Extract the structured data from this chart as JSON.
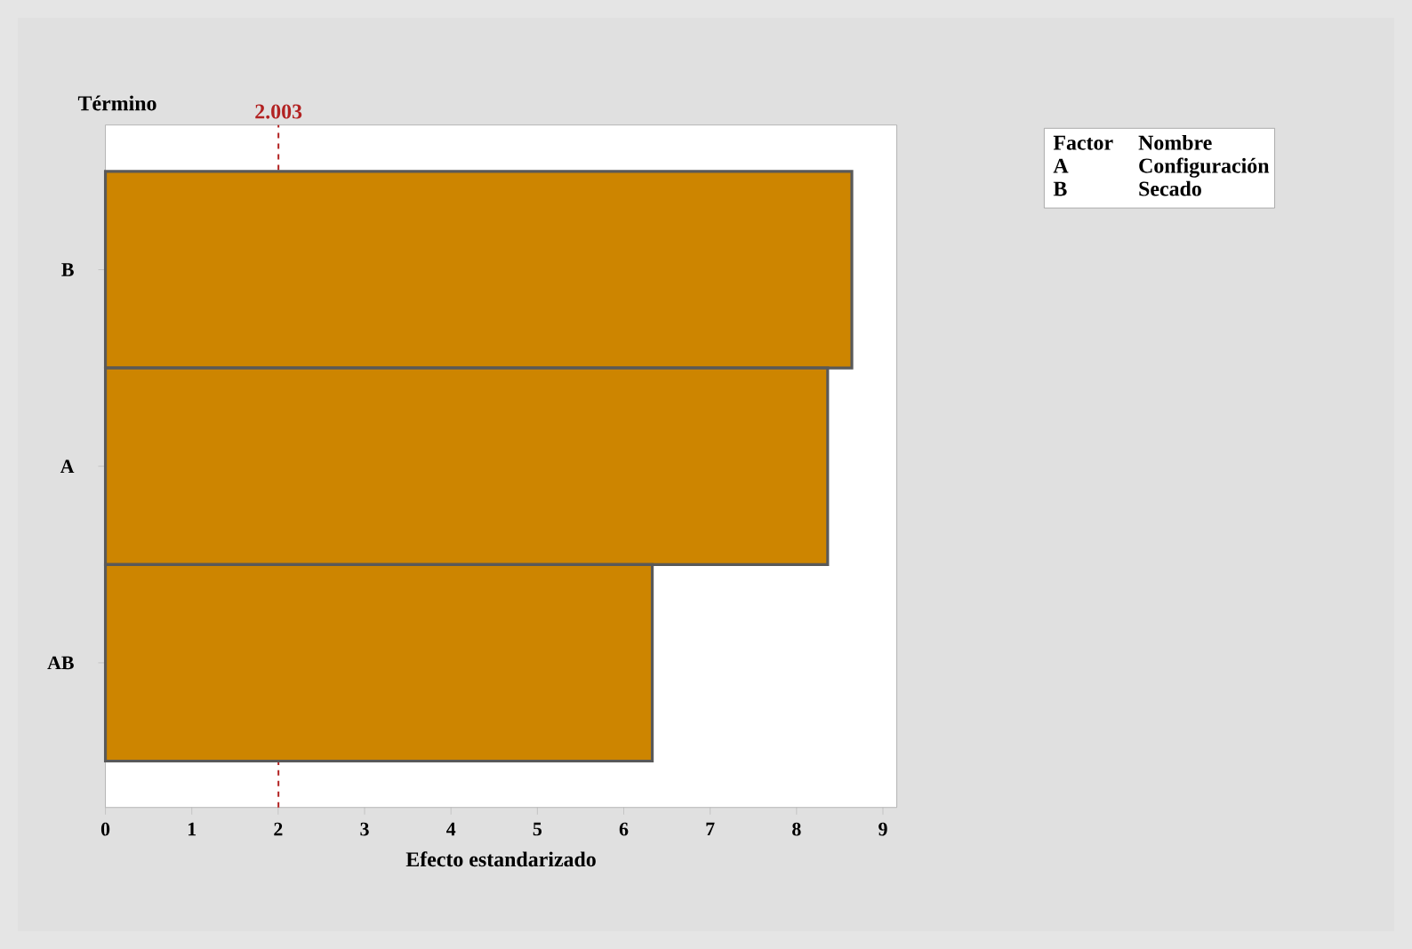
{
  "chart_data": {
    "type": "bar",
    "orientation": "horizontal",
    "categories": [
      "B",
      "A",
      "AB"
    ],
    "values": [
      8.64,
      8.36,
      6.33
    ],
    "color": "#cd8500",
    "xlim": [
      0,
      9.16
    ],
    "xticks": [
      0,
      1,
      2,
      3,
      4,
      5,
      6,
      7,
      8,
      9
    ],
    "xlabel": "Efecto estandarizado",
    "ylabel": "Término",
    "ref_lines": [
      {
        "axis": "x",
        "value": 2.003,
        "label": "2.003",
        "color": "#b22222",
        "line_style": "dashed"
      }
    ],
    "annotations": [
      "Factor",
      "Nombre",
      "A",
      "Configuración",
      "B",
      "Secado"
    ]
  }
}
